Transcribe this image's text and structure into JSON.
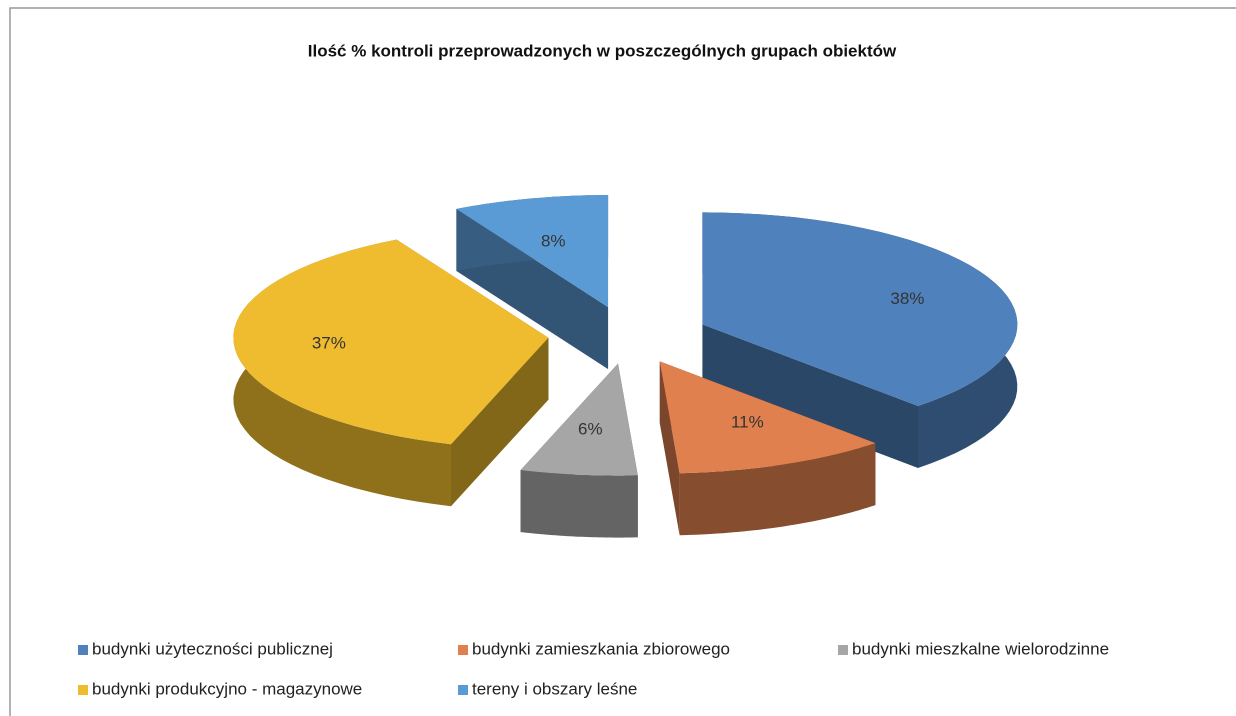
{
  "chart_data": {
    "type": "pie",
    "title": "Ilość % kontroli przeprowadzonych w poszczególnych grupach obiektów",
    "categories": [
      "budynki użyteczności publicznej",
      "budynki zamieszkania zbiorowego",
      "budynki mieszkalne wielorodzinne",
      "budynki produkcyjno - magazynowe",
      "tereny i obszary leśne"
    ],
    "values": [
      38,
      11,
      6,
      37,
      8
    ],
    "value_labels": [
      "38%",
      "11%",
      "6%",
      "37%",
      "8%"
    ],
    "colors": [
      "#4f81bd",
      "#e0804f",
      "#a6a6a6",
      "#eebc2e",
      "#5b9bd5"
    ],
    "legend": "bottom"
  }
}
